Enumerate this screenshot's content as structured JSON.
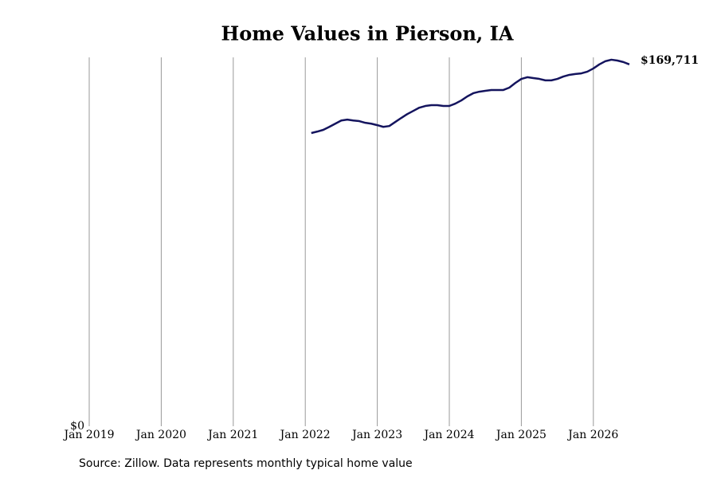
{
  "chart_data": {
    "type": "line",
    "title": "Home Values in Pierson, IA",
    "source": "Source: Zillow. Data represents monthly typical home value",
    "x": [
      "2022-02",
      "2022-03",
      "2022-04",
      "2022-05",
      "2022-06",
      "2022-07",
      "2022-08",
      "2022-09",
      "2022-10",
      "2022-11",
      "2022-12",
      "2023-01",
      "2023-02",
      "2023-03",
      "2023-04",
      "2023-05",
      "2023-06",
      "2023-07",
      "2023-08",
      "2023-09",
      "2023-10",
      "2023-11",
      "2023-12",
      "2024-01",
      "2024-02",
      "2024-03",
      "2024-04",
      "2024-05",
      "2024-06",
      "2024-07",
      "2024-08",
      "2024-09",
      "2024-10",
      "2024-11",
      "2024-12",
      "2025-01",
      "2025-02",
      "2025-03",
      "2025-04",
      "2025-05",
      "2025-06",
      "2025-07",
      "2025-08",
      "2025-09",
      "2025-10",
      "2025-11",
      "2025-12",
      "2026-01",
      "2026-02",
      "2026-03",
      "2026-04",
      "2026-05",
      "2026-06",
      "2026-07"
    ],
    "values": [
      137500,
      138200,
      139000,
      140400,
      141900,
      143400,
      143800,
      143400,
      143100,
      142300,
      141900,
      141200,
      140400,
      140800,
      142700,
      144600,
      146400,
      147900,
      149400,
      150200,
      150600,
      150600,
      150200,
      150200,
      151300,
      152800,
      154700,
      156200,
      156900,
      157300,
      157700,
      157700,
      157700,
      158800,
      161000,
      162900,
      163700,
      163300,
      162900,
      162200,
      162200,
      162900,
      164000,
      164800,
      165200,
      165500,
      166300,
      167800,
      169700,
      171200,
      171900,
      171500,
      170800,
      169711
    ],
    "value_labels": [
      null,
      null,
      null,
      null,
      null,
      null,
      null,
      null,
      null,
      null,
      null,
      null,
      null,
      null,
      null,
      null,
      null,
      null,
      null,
      null,
      null,
      null,
      null,
      null,
      null,
      null,
      null,
      null,
      null,
      null,
      null,
      null,
      null,
      null,
      null,
      null,
      null,
      null,
      null,
      null,
      null,
      null,
      null,
      null,
      null,
      null,
      null,
      null,
      null,
      null,
      null,
      null,
      null,
      "$169,711"
    ],
    "color": "#14145e",
    "xlim": [
      "2019-01",
      "2026-07"
    ],
    "xticks": [
      {
        "value": "2019-01",
        "label": "Jan 2019"
      },
      {
        "value": "2020-01",
        "label": "Jan 2020"
      },
      {
        "value": "2021-01",
        "label": "Jan 2021"
      },
      {
        "value": "2022-01",
        "label": "Jan 2022"
      },
      {
        "value": "2023-01",
        "label": "Jan 2023"
      },
      {
        "value": "2024-01",
        "label": "Jan 2024"
      },
      {
        "value": "2025-01",
        "label": "Jan 2025"
      },
      {
        "value": "2026-01",
        "label": "Jan 2026"
      }
    ],
    "ylim": [
      0,
      173000
    ],
    "yticks": [
      {
        "value": 0,
        "label": "$0"
      }
    ],
    "grid": true
  }
}
